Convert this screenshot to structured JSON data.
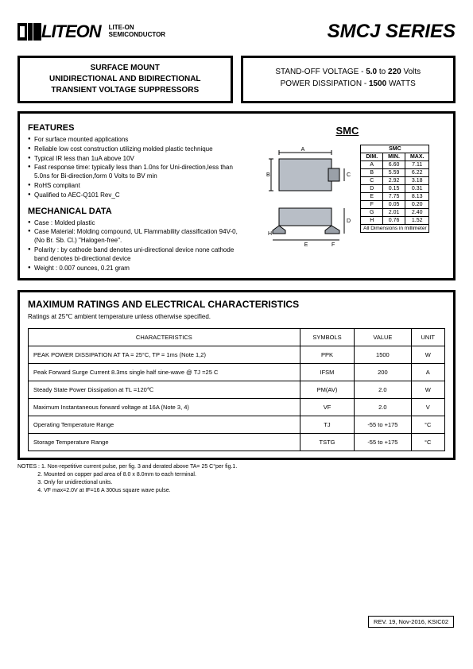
{
  "header": {
    "brand": "LITEON",
    "tag_line1": "LITE-ON",
    "tag_line2": "SEMICONDUCTOR",
    "series": "SMCJ SERIES"
  },
  "product_title": {
    "l1": "SURFACE MOUNT",
    "l2": "UNIDIRECTIONAL AND BIDIRECTIONAL",
    "l3": "TRANSIENT VOLTAGE SUPPRESSORS"
  },
  "top_specs": {
    "l1_pre": "STAND-OFF VOLTAGE - ",
    "l1_v1": "5.0",
    "l1_mid": " to ",
    "l1_v2": "220",
    "l1_suf": " Volts",
    "l2_pre": "POWER DISSIPATION  - ",
    "l2_v": "1500",
    "l2_suf": " WATTS"
  },
  "features": {
    "heading": "FEATURES",
    "items": [
      "For surface mounted applications",
      "Reliable low cost construction utilizing molded plastic technique",
      "Typical IR less than 1uA above 10V",
      "Fast response time: typically less than 1.0ns for Uni-direction,less than 5.0ns for Bi-direction,form 0 Volts to BV min",
      "RoHS compliant",
      "Qualified to AEC-Q101 Rev_C"
    ]
  },
  "mechanical": {
    "heading": "MECHANICAL DATA",
    "items": [
      "Case : Molded plastic",
      "Case Material: Molding compound, UL Flammability classification 94V-0, (No Br. Sb. Cl.) \"Halogen-free\".",
      "Polarity : by cathode band denotes uni-directional device none cathode band denotes bi-directional device",
      "Weight : 0.007 ounces, 0.21 gram"
    ]
  },
  "smc": {
    "label": "SMC",
    "table_title": "SMC",
    "cols": [
      "DIM.",
      "MIN.",
      "MAX."
    ],
    "rows": [
      [
        "A",
        "6.60",
        "7.11"
      ],
      [
        "B",
        "5.59",
        "6.22"
      ],
      [
        "C",
        "2.92",
        "3.18"
      ],
      [
        "D",
        "0.15",
        "0.31"
      ],
      [
        "E",
        "7.75",
        "8.13"
      ],
      [
        "F",
        "0.05",
        "0.20"
      ],
      [
        "G",
        "2.01",
        "2.40"
      ],
      [
        "H",
        "0.76",
        "1.52"
      ]
    ],
    "footer": "All Dimensions in millimeter"
  },
  "ratings": {
    "heading": "MAXIMUM RATINGS AND ELECTRICAL CHARACTERISTICS",
    "sub": "Ratings at 25℃ ambient temperature unless otherwise specified.",
    "cols": [
      "CHARACTERISTICS",
      "SYMBOLS",
      "VALUE",
      "UNIT"
    ],
    "rows": [
      {
        "desc": "PEAK POWER DISSIPATION AT TA = 25°C, TP = 1ms (Note 1,2)",
        "sym": "PPK",
        "val": "1500",
        "unit": "W"
      },
      {
        "desc": "Peak Forward Surge Current 8.3ms single half sine-wave @ TJ =25 C",
        "sym": "IFSM",
        "val": "200",
        "unit": "A"
      },
      {
        "desc": "Steady State Power Dissipation at TL =120℃",
        "sym": "PM(AV)",
        "val": "2.0",
        "unit": "W"
      },
      {
        "desc": "Maximum Instantaneous forward voltage at 16A (Note 3, 4)",
        "sym": "VF",
        "val": "2.0",
        "unit": "V"
      },
      {
        "desc": "Operating Temperature Range",
        "sym": "TJ",
        "val": "-55 to +175",
        "unit": "°C"
      },
      {
        "desc": "Storage Temperature Range",
        "sym": "TSTG",
        "val": "-55 to +175",
        "unit": "°C"
      }
    ]
  },
  "notes": {
    "prefix": "NOTES : ",
    "items": [
      "1. Non-repetitive current pulse, per fig. 3 and derated above TA= 25 C°per fig.1.",
      "2. Mounted on copper pad area of 8.0 x 8.0mm to each terminal.",
      "3. Only for unidirectional units.",
      "4. VF max=2.0V at IF=16 A 300us square wave pulse."
    ]
  },
  "revision": "REV. 19, Nov-2016, KSIC02",
  "colors": {
    "text": "#000000",
    "accent_gray": "#9aa0a8",
    "diagram_fill": "#b8bec6"
  }
}
